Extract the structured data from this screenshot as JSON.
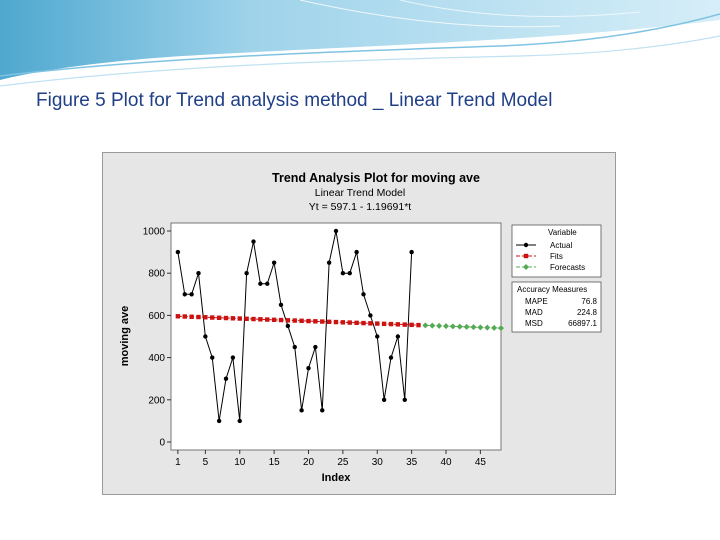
{
  "slide": {
    "title": "Figure 5 Plot for Trend analysis method _ Linear Trend Model"
  },
  "colors": {
    "title_text": "#1f3f86",
    "banner_light": "#d6eef8",
    "banner_mid": "#9fd3ea",
    "banner_dark": "#4fa8d0",
    "actual": "#000000",
    "fits": "#cc1111",
    "forecasts": "#55aa55",
    "plot_bg": "#ffffff",
    "frame_bg": "#e6e6e6"
  },
  "chart_data": {
    "type": "line",
    "title": "Trend Analysis Plot for moving ave",
    "subtitle": "Linear Trend Model",
    "equation": "Yt = 597.1 - 1.19691*t",
    "xlabel": "Index",
    "ylabel": "moving ave",
    "xlim": [
      0,
      48
    ],
    "ylim": [
      0,
      1000
    ],
    "x_ticks": [
      1,
      5,
      10,
      15,
      20,
      25,
      30,
      35,
      40,
      45
    ],
    "y_ticks": [
      0,
      200,
      400,
      600,
      800,
      1000
    ],
    "legend": {
      "title": "Variable",
      "position": "right",
      "entries": [
        "Actual",
        "Fits",
        "Forecasts"
      ]
    },
    "accuracy_measures": {
      "title": "Accuracy Measures",
      "rows": [
        {
          "label": "MAPE",
          "value": "76.8"
        },
        {
          "label": "MAD",
          "value": "224.8"
        },
        {
          "label": "MSD",
          "value": "66897.1"
        }
      ]
    },
    "series": [
      {
        "name": "Actual",
        "x": [
          1,
          2,
          3,
          4,
          5,
          6,
          7,
          8,
          9,
          10,
          11,
          12,
          13,
          14,
          15,
          16,
          17,
          18,
          19,
          20,
          21,
          22,
          23,
          24,
          25,
          26,
          27,
          28,
          29,
          30,
          31,
          32,
          33,
          34,
          35,
          36
        ],
        "values": [
          900,
          700,
          700,
          800,
          500,
          400,
          100,
          300,
          400,
          100,
          800,
          950,
          750,
          750,
          850,
          650,
          550,
          450,
          150,
          350,
          450,
          150,
          850,
          1000,
          800,
          800,
          900,
          700,
          600,
          500,
          200,
          400,
          500,
          200,
          900,
          null
        ]
      },
      {
        "name": "Fits",
        "x": [
          1,
          2,
          3,
          4,
          5,
          6,
          7,
          8,
          9,
          10,
          11,
          12,
          13,
          14,
          15,
          16,
          17,
          18,
          19,
          20,
          21,
          22,
          23,
          24,
          25,
          26,
          27,
          28,
          29,
          30,
          31,
          32,
          33,
          34,
          35,
          36
        ],
        "values": [
          595.9,
          594.7,
          593.5,
          592.3,
          591.1,
          589.9,
          588.7,
          587.5,
          586.3,
          585.1,
          583.9,
          582.7,
          581.5,
          580.3,
          579.1,
          577.9,
          576.8,
          575.6,
          574.4,
          573.2,
          572.0,
          570.8,
          569.6,
          568.4,
          567.2,
          566.0,
          564.8,
          563.6,
          562.4,
          561.2,
          560.0,
          558.8,
          557.6,
          556.4,
          555.2,
          554.0
        ]
      },
      {
        "name": "Forecasts",
        "x": [
          37,
          38,
          39,
          40,
          41,
          42,
          43,
          44,
          45,
          46,
          47,
          48
        ],
        "values": [
          552.8,
          551.6,
          550.4,
          549.2,
          548.0,
          546.8,
          545.6,
          544.4,
          543.2,
          542.0,
          540.8,
          539.6
        ]
      }
    ]
  }
}
